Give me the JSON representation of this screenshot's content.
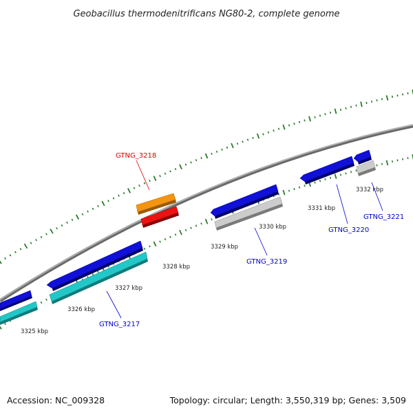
{
  "title": "Geobacillus thermodenitrificans NG80-2, complete genome",
  "accession": "Accession: NC_009328",
  "topology": "Topology: circular; Length: 3,550,319 bp; Genes: 3,509",
  "ticks": [
    "3325 kbp",
    "3326 kbp",
    "3327 kbp",
    "3328 kbp",
    "3329 kbp",
    "3330 kbp",
    "3331 kbp",
    "3332 kbp"
  ],
  "gene_labels": [
    {
      "text": "GTNG_3217",
      "color": "#0000cc"
    },
    {
      "text": "GTNG_3218",
      "color": "#dd0000"
    },
    {
      "text": "GTNG_3219",
      "color": "#0000cc"
    },
    {
      "text": "GTNG_3220",
      "color": "#0000cc"
    },
    {
      "text": "GTNG_3221",
      "color": "#0000cc"
    }
  ],
  "colors": {
    "backbone": "#888888",
    "tick": "#2a7a2a",
    "gene_blue": "#1414e0",
    "gene_cyan": "#22c8c8",
    "gene_orange": "#f5950f",
    "gene_red": "#ee1111",
    "gene_gray": "#c8c8c8"
  }
}
